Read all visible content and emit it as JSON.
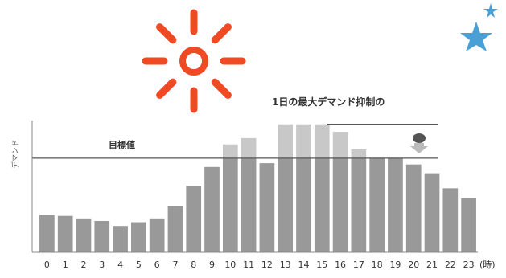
{
  "chart_data": {
    "type": "bar",
    "title": "1日の最大デマンド抑制の",
    "ylabel": "デマンド",
    "target_label": "目標値",
    "x_unit": "(時)",
    "categories": [
      "0",
      "1",
      "2",
      "3",
      "4",
      "5",
      "6",
      "7",
      "8",
      "9",
      "10",
      "11",
      "12",
      "13",
      "14",
      "15",
      "16",
      "17",
      "18",
      "19",
      "20",
      "21",
      "22",
      "23"
    ],
    "values": [
      30,
      29,
      27,
      25,
      21,
      24,
      27,
      37,
      53,
      68,
      86,
      91,
      71,
      102,
      102,
      102,
      96,
      82,
      75,
      75,
      70,
      63,
      51,
      43
    ],
    "target": 75,
    "peak_line": 102,
    "ylim": [
      0,
      105
    ],
    "grid": false,
    "bar_color": "#999999",
    "excess_color": "#c8c8c8",
    "line_color": "#555555"
  },
  "icons": {
    "sun": {
      "name": "sun-icon",
      "color": "#ef4a23"
    },
    "moon": {
      "name": "moon-with-stars-icon",
      "color": "#4a9fd5"
    }
  }
}
